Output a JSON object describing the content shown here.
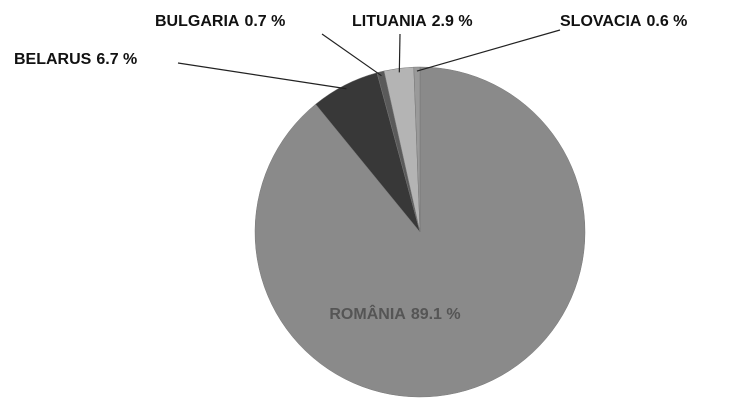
{
  "chart_data": {
    "type": "pie",
    "categories": [
      "ROMÂNIA",
      "BELARUS",
      "BULGARIA",
      "LITUANIA",
      "SLOVACIA"
    ],
    "values": [
      89.1,
      6.7,
      0.7,
      2.9,
      0.6
    ],
    "value_labels": [
      "89.1 %",
      "6.7 %",
      "0.7 %",
      "2.9 %",
      "0.6 %"
    ],
    "colors": [
      "#8a8a8a",
      "#383838",
      "#5a5a5a",
      "#b4b4b4",
      "#9a9a9a"
    ]
  }
}
